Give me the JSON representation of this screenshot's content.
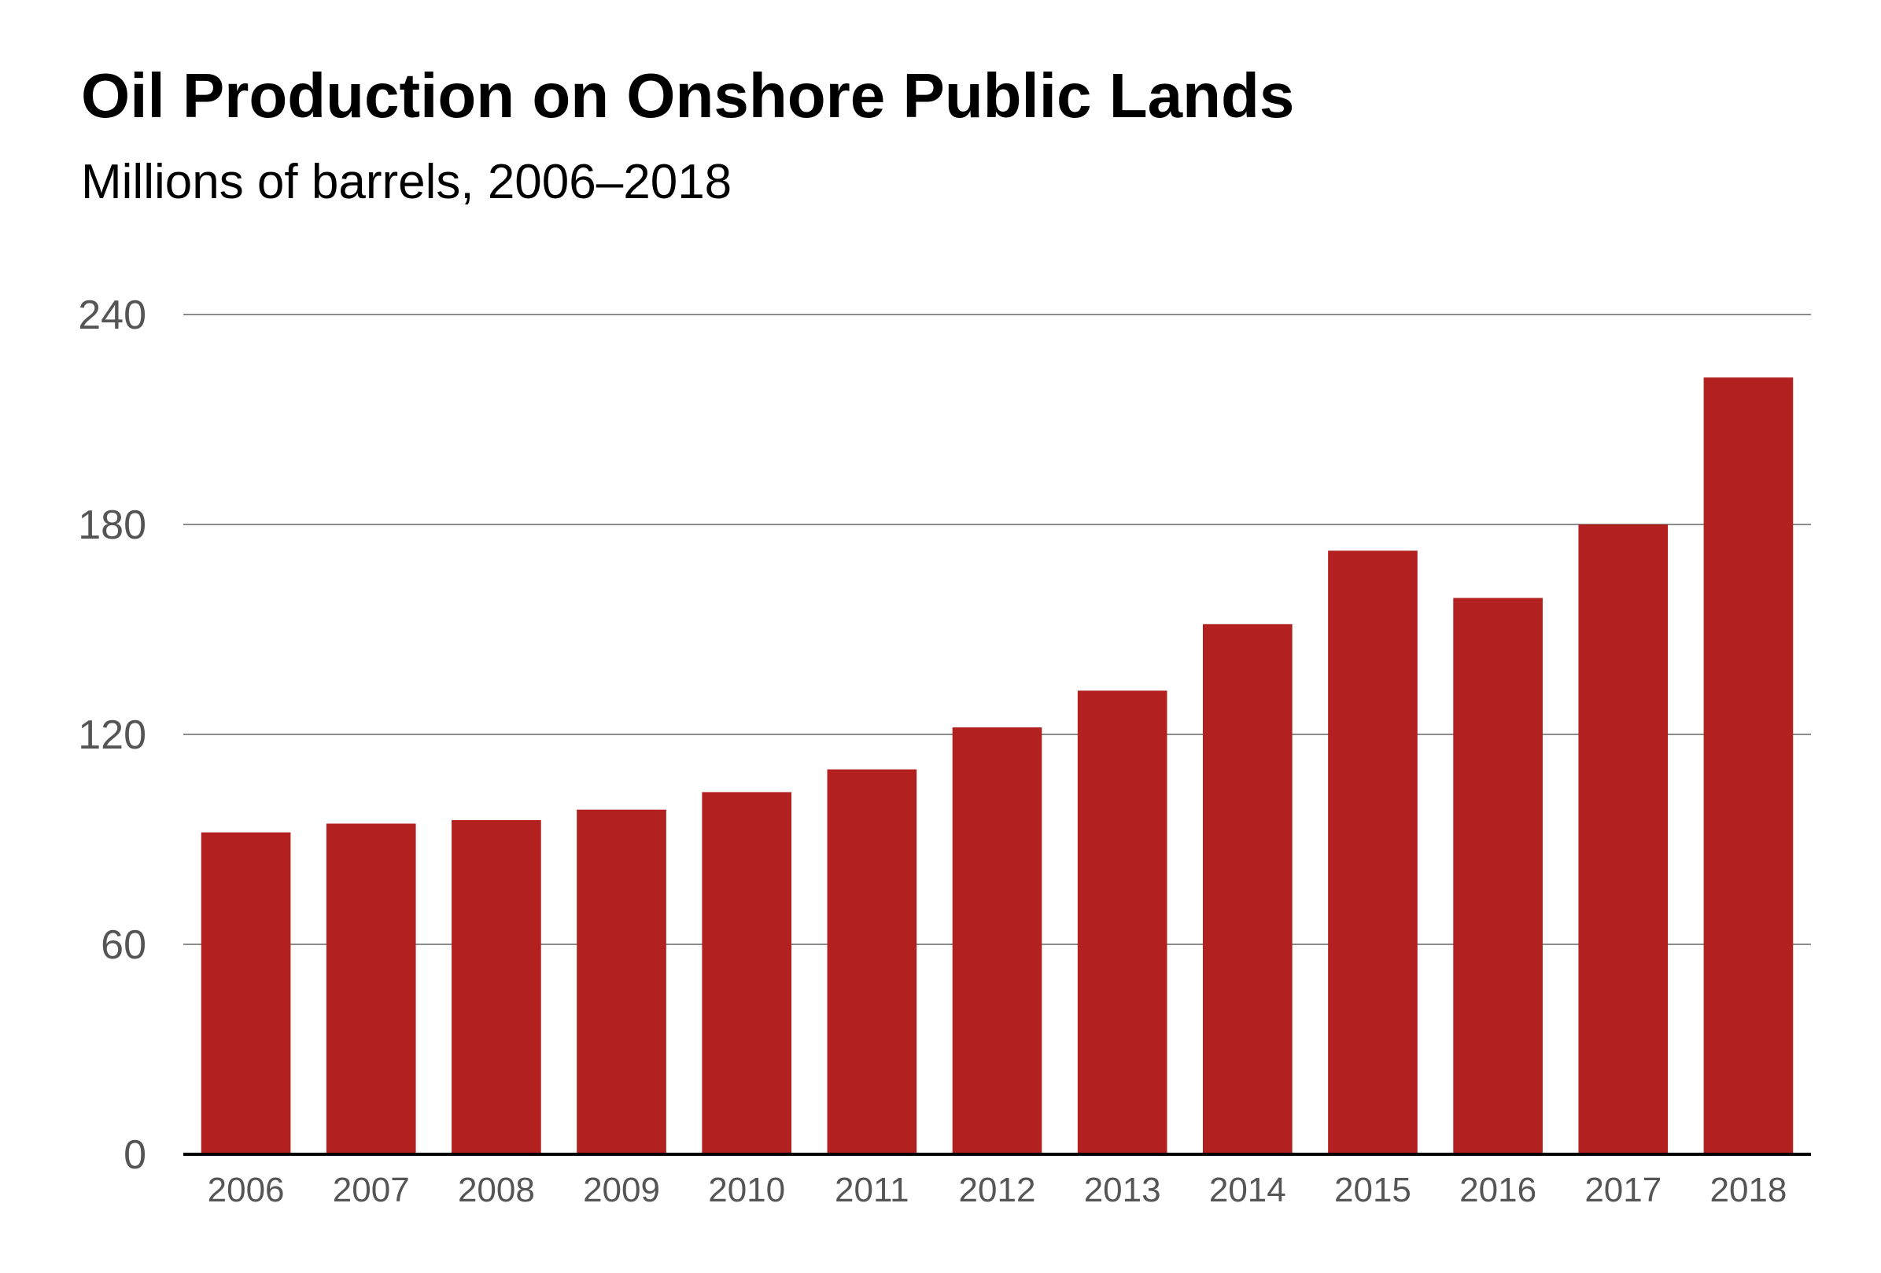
{
  "chart_data": {
    "type": "bar",
    "title": "Oil Production on Onshore Public Lands",
    "subtitle": "Millions of barrels, 2006–2018",
    "xlabel": "",
    "ylabel": "",
    "categories": [
      "2006",
      "2007",
      "2008",
      "2009",
      "2010",
      "2011",
      "2012",
      "2013",
      "2014",
      "2015",
      "2016",
      "2017",
      "2018"
    ],
    "values": [
      92,
      94.5,
      95.5,
      98.5,
      103.5,
      110,
      122,
      132.5,
      151.5,
      172.5,
      159,
      180,
      222
    ],
    "ylim": [
      0,
      240
    ],
    "yticks": [
      "0",
      "60",
      "120",
      "180",
      "240"
    ],
    "grid": true,
    "legend": "none",
    "colors": {
      "bar": "#b22020",
      "gridline": "#8c8c8c",
      "axis": "#000000",
      "tick_text": "#555555",
      "title_text": "#000000"
    }
  }
}
